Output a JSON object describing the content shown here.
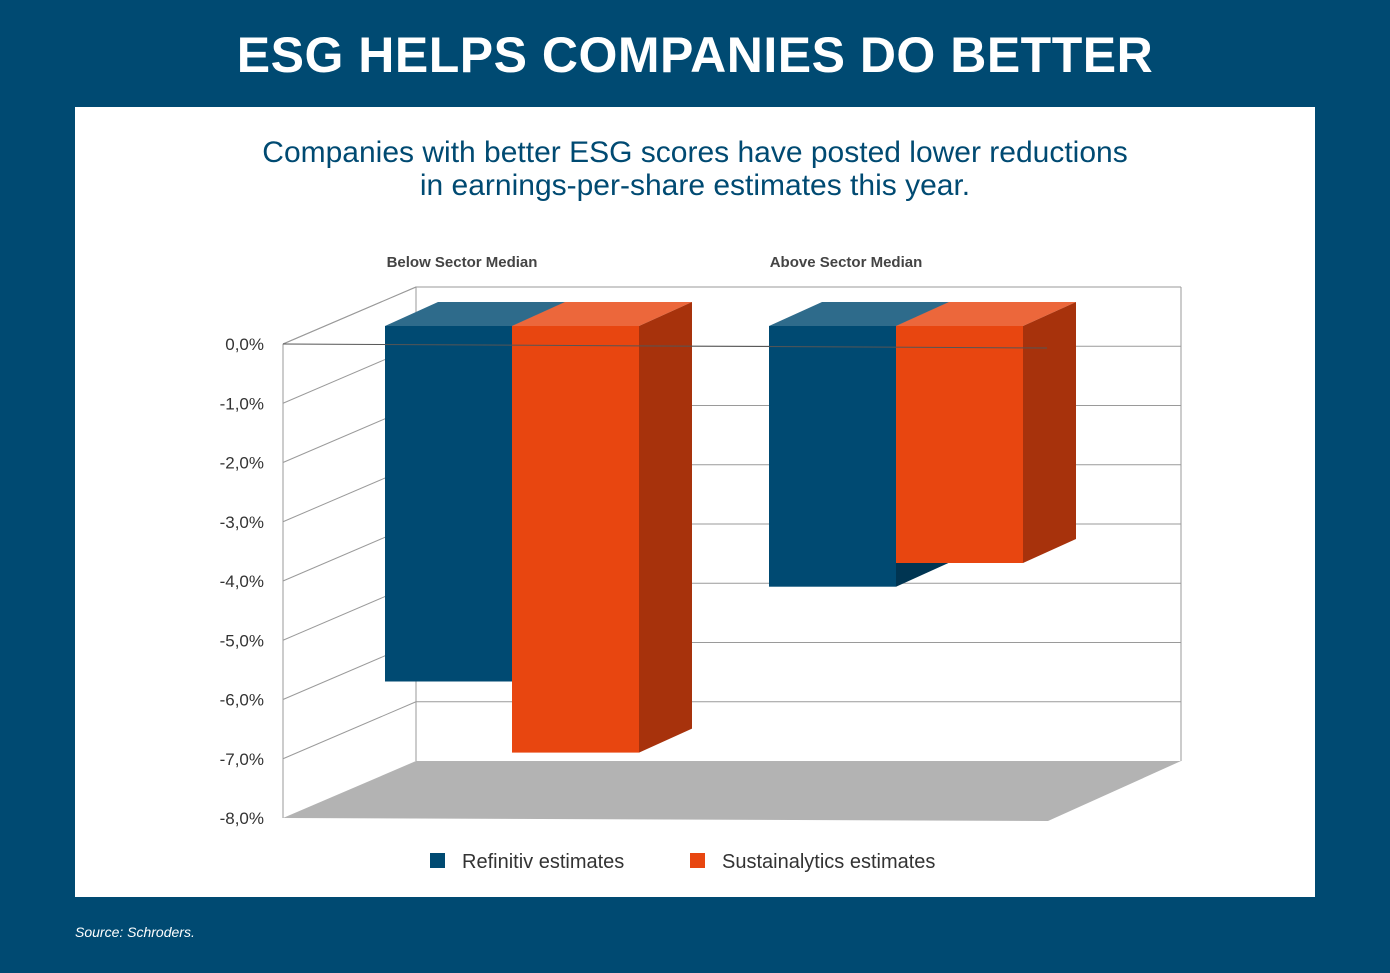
{
  "title": "ESG HELPS COMPANIES DO BETTER",
  "subtitle": {
    "line1": "Companies with better ESG scores have posted lower reductions",
    "line2": "in earnings-per-share estimates this year."
  },
  "source": "Source: Schroders.",
  "colors": {
    "background": "#004a72",
    "refinitiv": "#004a72",
    "sustainalytics": "#e84610"
  },
  "chart_data": {
    "type": "bar",
    "categories": [
      "Below Sector Median",
      "Above Sector Median"
    ],
    "series": [
      {
        "name": "Refinitiv estimates",
        "values": [
          -6.0,
          -4.4
        ],
        "color": "#004a72"
      },
      {
        "name": "Sustainalytics estimates",
        "values": [
          -7.2,
          -4.0
        ],
        "color": "#e84610"
      }
    ],
    "ylim": [
      -8.0,
      0.0
    ],
    "y_ticks": [
      "0,0%",
      "-1,0%",
      "-2,0%",
      "-3,0%",
      "-4,0%",
      "-5,0%",
      "-6,0%",
      "-7,0%",
      "-8,0%"
    ],
    "grid": true,
    "legend_position": "bottom-center",
    "style": "3d"
  }
}
